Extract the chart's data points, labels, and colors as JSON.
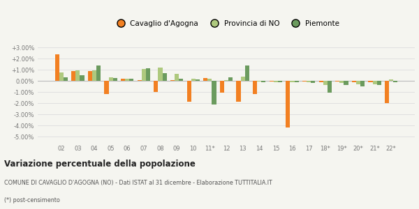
{
  "categories": [
    "02",
    "03",
    "04",
    "05",
    "06",
    "07",
    "08",
    "09",
    "10",
    "11*",
    "12",
    "13",
    "14",
    "15",
    "16",
    "17",
    "18*",
    "19*",
    "20*",
    "21*",
    "22*"
  ],
  "cavaglio": [
    2.4,
    0.9,
    0.9,
    -1.2,
    0.2,
    0.05,
    -1.0,
    0.05,
    -1.85,
    0.25,
    -1.05,
    -1.9,
    -1.2,
    -0.05,
    -4.2,
    -0.05,
    -0.15,
    -0.05,
    -0.1,
    -0.1,
    -2.0
  ],
  "provincia": [
    0.75,
    0.95,
    0.95,
    0.3,
    0.2,
    1.05,
    1.2,
    0.6,
    0.2,
    0.2,
    0.05,
    0.35,
    -0.05,
    -0.1,
    -0.1,
    -0.1,
    -0.35,
    -0.2,
    -0.3,
    -0.3,
    0.1
  ],
  "piemonte": [
    0.3,
    0.5,
    1.35,
    0.25,
    0.2,
    1.1,
    0.7,
    0.2,
    0.15,
    -2.15,
    0.3,
    1.4,
    -0.1,
    -0.1,
    -0.15,
    -0.2,
    -1.05,
    -0.35,
    -0.5,
    -0.4,
    -0.15
  ],
  "color_cavaglio": "#f28022",
  "color_provincia": "#aec97e",
  "color_piemonte": "#6b9b5e",
  "ylim": [
    -5.5,
    3.5
  ],
  "yticks": [
    -5.0,
    -4.0,
    -3.0,
    -2.0,
    -1.0,
    0.0,
    1.0,
    2.0,
    3.0
  ],
  "ytick_labels": [
    "-5.00%",
    "-4.00%",
    "-3.00%",
    "-2.00%",
    "-1.00%",
    "0.00%",
    "+1.00%",
    "+2.00%",
    "+3.00%"
  ],
  "title": "Variazione percentuale della popolazione",
  "subtitle": "COMUNE DI CAVAGLIO D'AGOGNA (NO) - Dati ISTAT al 31 dicembre - Elaborazione TUTTITALIA.IT",
  "footnote": "(*) post-censimento",
  "legend_labels": [
    "Cavaglio d'Agogna",
    "Provincia di NO",
    "Piemonte"
  ],
  "bg_color": "#f5f5f0",
  "grid_color": "#dddddd"
}
